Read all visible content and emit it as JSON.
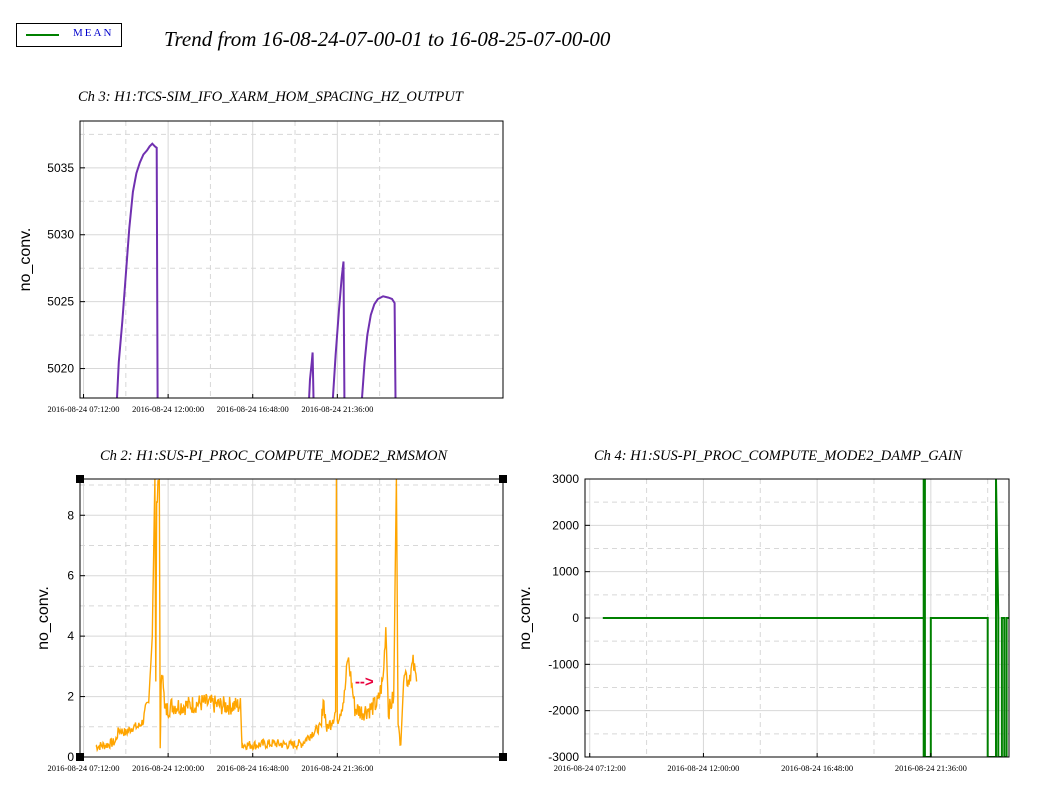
{
  "legend": {
    "label": "MEAN",
    "color": "#008000"
  },
  "title": "Trend from 16-08-24-07-00-01 to 16-08-25-07-00-00",
  "colors": {
    "ch3": "#7030b0",
    "ch2": "#ffa500",
    "ch4": "#008000",
    "arrow": "#e8003c"
  },
  "chart_data": [
    {
      "type": "line",
      "title": "Ch 3: H1:TCS-SIM_IFO_XARM_HOM_SPACING_HZ_OUTPUT",
      "ylabel": "no_conv.",
      "xlabel": "",
      "xlim": [
        0,
        24
      ],
      "ylim": [
        5017.8,
        5038.5
      ],
      "yticks": [
        5020,
        5025,
        5030,
        5035
      ],
      "ytick_labels": [
        "5020",
        "5025",
        "5030",
        "5035"
      ],
      "xticks": [
        0.2,
        5.0,
        9.8,
        14.6
      ],
      "xtick_labels": [
        "2016-08-24 07:12:00",
        "2016-08-24 12:00:00",
        "2016-08-24 16:48:00",
        "2016-08-24 21:36:00"
      ],
      "grid": true,
      "series": [
        {
          "segments": [
            [
              [
                2.1,
                5017.8
              ],
              [
                2.2,
                5020.5
              ],
              [
                2.4,
                5023.5
              ],
              [
                2.6,
                5027.0
              ],
              [
                2.8,
                5030.5
              ],
              [
                3.0,
                5033.2
              ],
              [
                3.2,
                5034.6
              ],
              [
                3.4,
                5035.4
              ],
              [
                3.6,
                5036.0
              ],
              [
                3.8,
                5036.3
              ],
              [
                3.95,
                5036.6
              ],
              [
                4.1,
                5036.8
              ],
              [
                4.25,
                5036.6
              ],
              [
                4.35,
                5036.5
              ],
              [
                4.38,
                5026.0
              ],
              [
                4.4,
                5017.8
              ]
            ],
            [
              [
                13.0,
                5017.8
              ],
              [
                13.05,
                5019.2
              ],
              [
                13.15,
                5020.5
              ],
              [
                13.2,
                5021.2
              ],
              [
                13.25,
                5017.8
              ]
            ],
            [
              [
                14.35,
                5017.8
              ],
              [
                14.5,
                5021.0
              ],
              [
                14.7,
                5024.5
              ],
              [
                14.85,
                5026.8
              ],
              [
                14.95,
                5028.0
              ],
              [
                15.0,
                5017.8
              ]
            ],
            [
              [
                16.0,
                5017.8
              ],
              [
                16.15,
                5020.5
              ],
              [
                16.3,
                5022.5
              ],
              [
                16.5,
                5024.0
              ],
              [
                16.7,
                5024.8
              ],
              [
                16.9,
                5025.2
              ],
              [
                17.2,
                5025.4
              ],
              [
                17.5,
                5025.3
              ],
              [
                17.7,
                5025.2
              ],
              [
                17.85,
                5024.9
              ],
              [
                17.9,
                5017.8
              ]
            ]
          ]
        }
      ]
    },
    {
      "type": "line",
      "title": "Ch 2: H1:SUS-PI_PROC_COMPUTE_MODE2_RMSMON",
      "ylabel": "no_conv.",
      "xlabel": "",
      "xlim": [
        0,
        24
      ],
      "ylim": [
        0,
        9.2
      ],
      "yticks": [
        0,
        2,
        4,
        6,
        8
      ],
      "ytick_labels": [
        "0",
        "2",
        "4",
        "6",
        "8"
      ],
      "xticks": [
        0.2,
        5.0,
        9.8,
        14.6
      ],
      "xtick_labels": [
        "2016-08-24 07:12:00",
        "2016-08-24 12:00:00",
        "2016-08-24 16:48:00",
        "2016-08-24 21:36:00"
      ],
      "grid": true,
      "annotation": "-->",
      "series": [
        {
          "points": [
            [
              0.9,
              0.35
            ],
            [
              1.5,
              0.4
            ],
            [
              2.0,
              0.5
            ],
            [
              2.2,
              0.9
            ],
            [
              2.6,
              0.8
            ],
            [
              3.0,
              1.0
            ],
            [
              3.3,
              1.0
            ],
            [
              3.6,
              1.2
            ],
            [
              3.9,
              1.8
            ],
            [
              4.1,
              4.0
            ],
            [
              4.25,
              9.2
            ],
            [
              4.3,
              2.5
            ],
            [
              4.35,
              8.5
            ],
            [
              4.5,
              9.2
            ],
            [
              4.55,
              0.3
            ],
            [
              4.6,
              2.2
            ],
            [
              4.7,
              3.0
            ],
            [
              4.8,
              1.5
            ],
            [
              5.2,
              1.7
            ],
            [
              6.0,
              1.7
            ],
            [
              7.0,
              1.8
            ],
            [
              8.0,
              1.7
            ],
            [
              8.9,
              1.7
            ],
            [
              9.1,
              1.7
            ],
            [
              9.2,
              0.4
            ],
            [
              10.0,
              0.4
            ],
            [
              11.0,
              0.45
            ],
            [
              12.0,
              0.4
            ],
            [
              12.6,
              0.45
            ],
            [
              13.0,
              0.7
            ],
            [
              13.4,
              0.9
            ],
            [
              13.7,
              1.0
            ],
            [
              13.8,
              2.0
            ],
            [
              14.0,
              0.9
            ],
            [
              14.3,
              1.3
            ],
            [
              14.5,
              1.5
            ],
            [
              14.55,
              9.2
            ],
            [
              14.6,
              1.3
            ],
            [
              14.8,
              1.6
            ],
            [
              15.0,
              2.0
            ],
            [
              15.2,
              3.3
            ],
            [
              15.4,
              2.5
            ],
            [
              15.6,
              1.6
            ],
            [
              16.0,
              1.5
            ],
            [
              16.5,
              1.6
            ],
            [
              16.9,
              1.8
            ],
            [
              17.2,
              2.6
            ],
            [
              17.35,
              4.3
            ],
            [
              17.5,
              1.5
            ],
            [
              17.8,
              2.0
            ],
            [
              17.95,
              9.2
            ],
            [
              18.05,
              1.0
            ],
            [
              18.2,
              0.4
            ],
            [
              18.4,
              3.0
            ],
            [
              18.6,
              2.5
            ],
            [
              18.9,
              3.1
            ],
            [
              19.1,
              2.5
            ]
          ]
        }
      ]
    },
    {
      "type": "line",
      "title": "Ch 4: H1:SUS-PI_PROC_COMPUTE_MODE2_DAMP_GAIN",
      "ylabel": "no_conv.",
      "xlabel": "",
      "xlim": [
        0,
        17.9
      ],
      "ylim": [
        -3000,
        3000
      ],
      "yticks": [
        -3000,
        -2000,
        -1000,
        0,
        1000,
        2000,
        3000
      ],
      "ytick_labels": [
        "-3000",
        "-2000",
        "-1000",
        "0",
        "1000",
        "2000",
        "3000"
      ],
      "xticks": [
        0.2,
        5.0,
        9.8,
        14.6
      ],
      "xtick_labels": [
        "2016-08-24 07:12:00",
        "2016-08-24 12:00:00",
        "2016-08-24 16:48:00",
        "2016-08-24 21:36:00"
      ],
      "grid": true,
      "series": [
        {
          "points": [
            [
              0.75,
              0
            ],
            [
              14.3,
              0
            ],
            [
              14.3,
              -3000
            ],
            [
              14.3,
              3000
            ],
            [
              14.35,
              3000
            ],
            [
              14.35,
              -3000
            ],
            [
              14.6,
              -3000
            ],
            [
              14.6,
              0
            ],
            [
              17.0,
              0
            ],
            [
              17.0,
              -3000
            ],
            [
              17.35,
              -3000
            ],
            [
              17.35,
              3000
            ],
            [
              17.45,
              0
            ],
            [
              17.45,
              -3000
            ],
            [
              17.6,
              -3000
            ],
            [
              17.6,
              0
            ],
            [
              17.7,
              0
            ],
            [
              17.7,
              -3000
            ],
            [
              17.8,
              -3000
            ],
            [
              17.8,
              0
            ],
            [
              17.9,
              0
            ]
          ]
        }
      ]
    }
  ]
}
